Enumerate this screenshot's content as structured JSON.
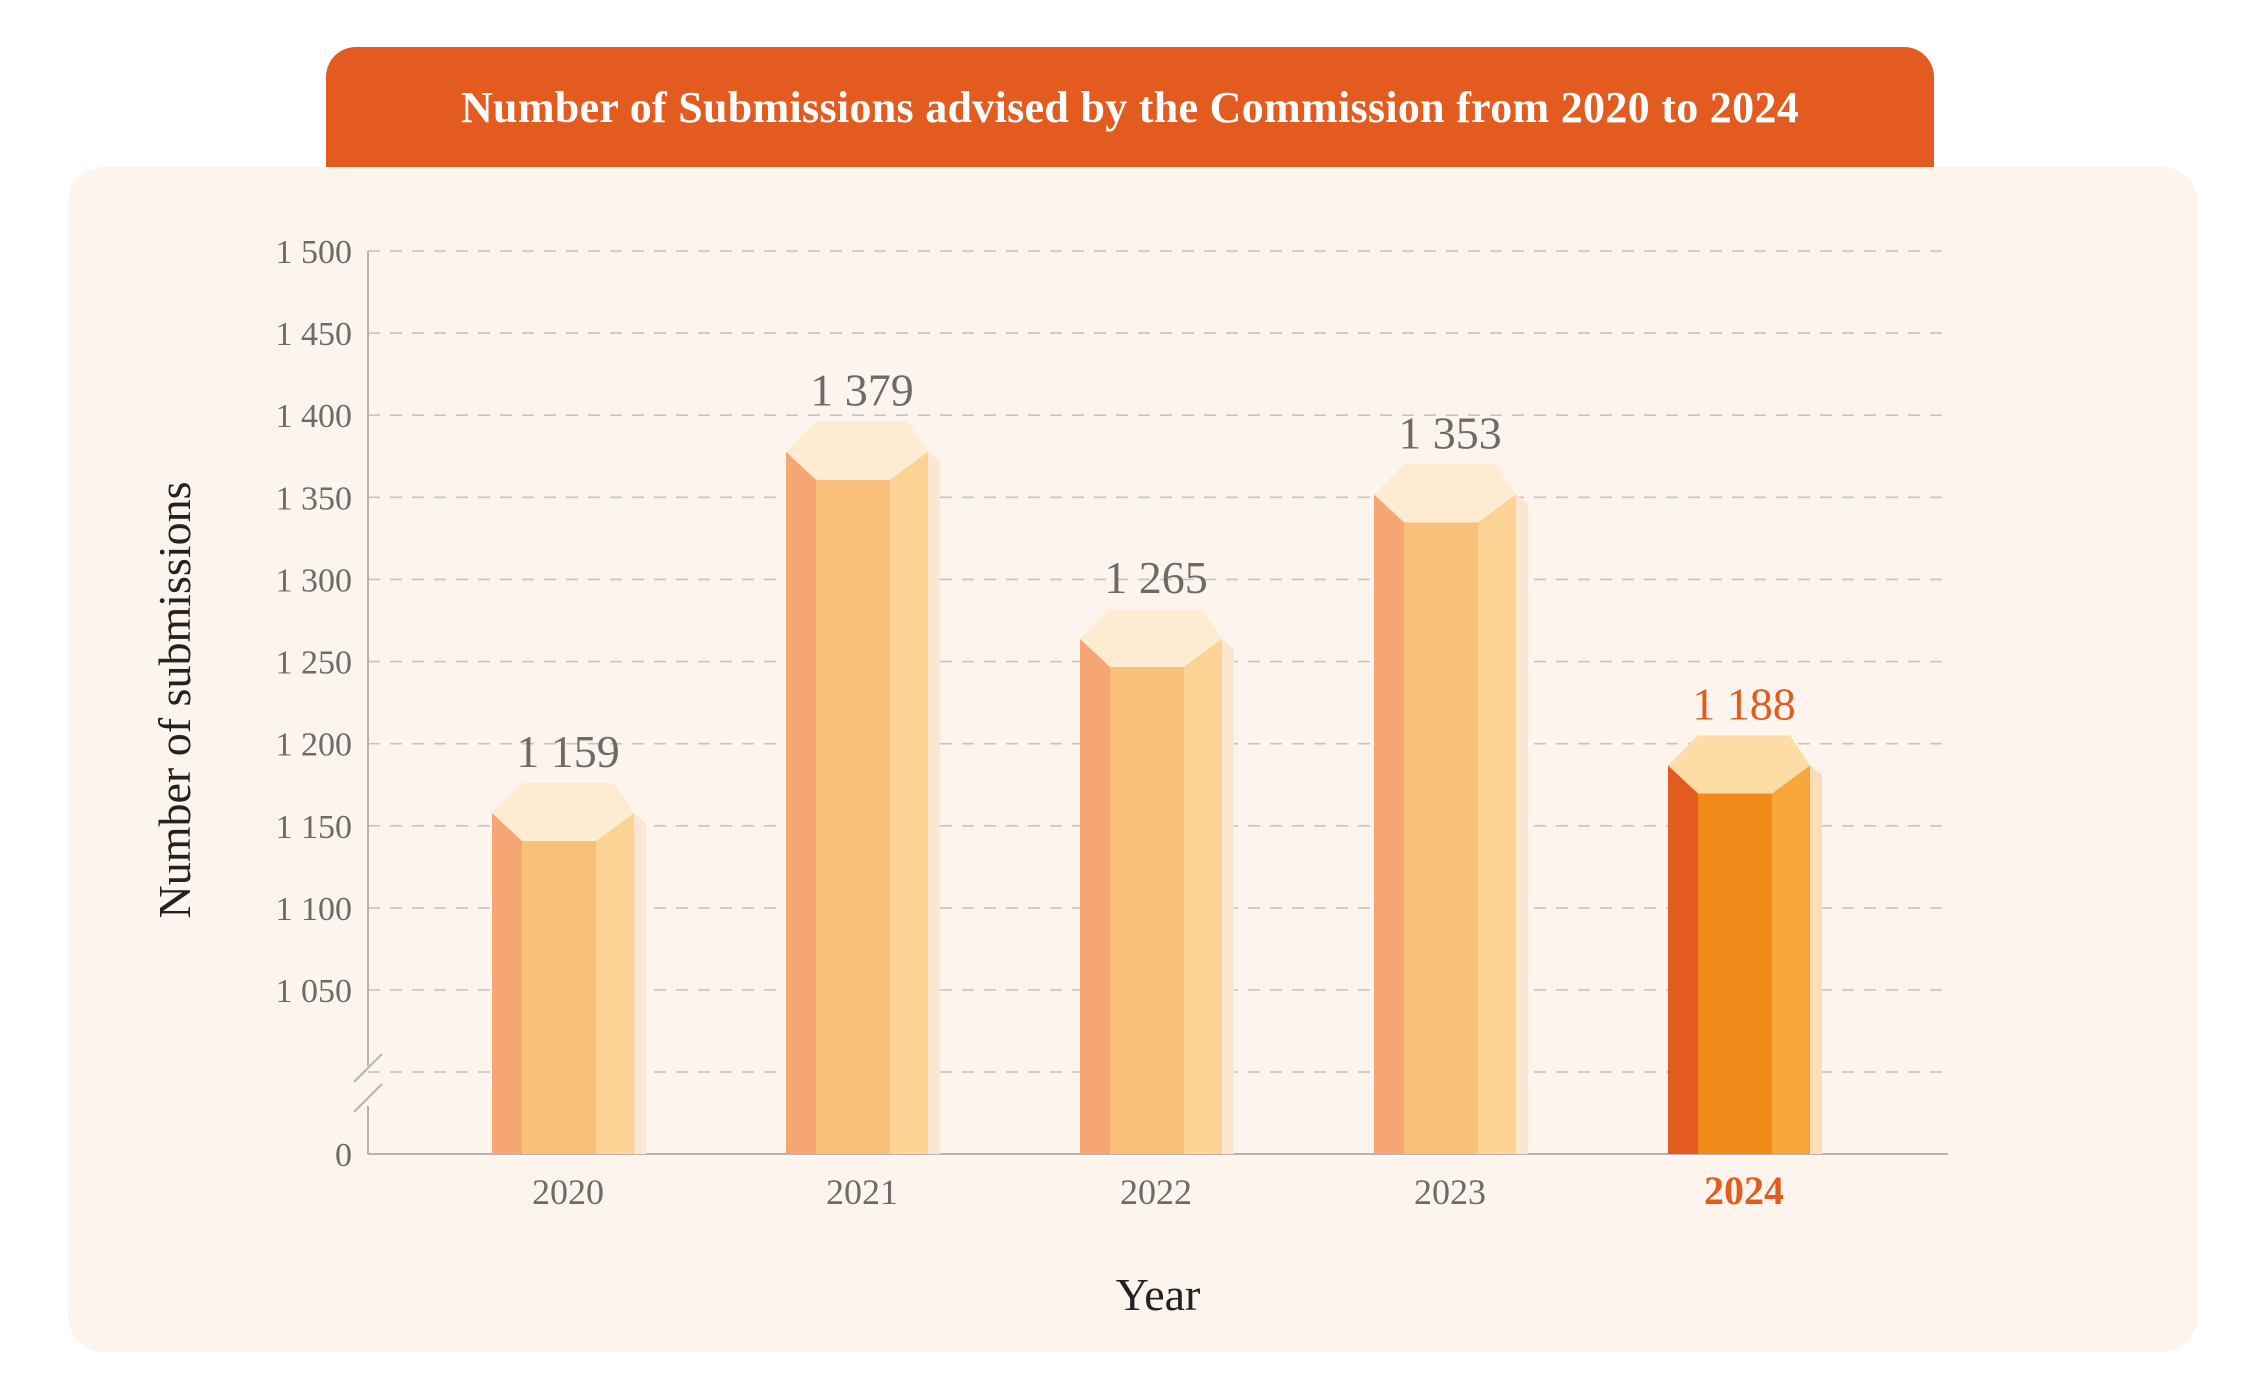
{
  "chart_data": {
    "type": "bar",
    "title": "Number of Submissions advised by the Commission from 2020 to 2024",
    "xlabel": "Year",
    "ylabel": "Number of submissions",
    "categories": [
      "2020",
      "2021",
      "2022",
      "2023",
      "2024"
    ],
    "values": [
      1159,
      1379,
      1265,
      1353,
      1188
    ],
    "value_labels": [
      "1 159",
      "1 379",
      "1 265",
      "1 353",
      "1 188"
    ],
    "highlight_index": 4,
    "yticks": [
      {
        "value": 1500,
        "label": "1 500"
      },
      {
        "value": 1450,
        "label": "1 450"
      },
      {
        "value": 1400,
        "label": "1 400"
      },
      {
        "value": 1350,
        "label": "1 350"
      },
      {
        "value": 1300,
        "label": "1 300"
      },
      {
        "value": 1250,
        "label": "1 250"
      },
      {
        "value": 1200,
        "label": "1 200"
      },
      {
        "value": 1150,
        "label": "1 150"
      },
      {
        "value": 1100,
        "label": "1 100"
      },
      {
        "value": 1050,
        "label": "1 050"
      },
      {
        "value": 0,
        "label": "0"
      }
    ],
    "ylim": [
      0,
      1500
    ],
    "axis_break": [
      0,
      1000
    ],
    "grid": true,
    "colors": {
      "bar_left": "#F6A673",
      "bar_front": "#F8C07A",
      "bar_right": "#FCD393",
      "bar_top": "#FDEBD2",
      "hl_left": "#E35B1E",
      "hl_front": "#F28A1A",
      "hl_right": "#F7A73A",
      "hl_top": "#FDDCA6",
      "accent": "#E35B1E"
    }
  }
}
